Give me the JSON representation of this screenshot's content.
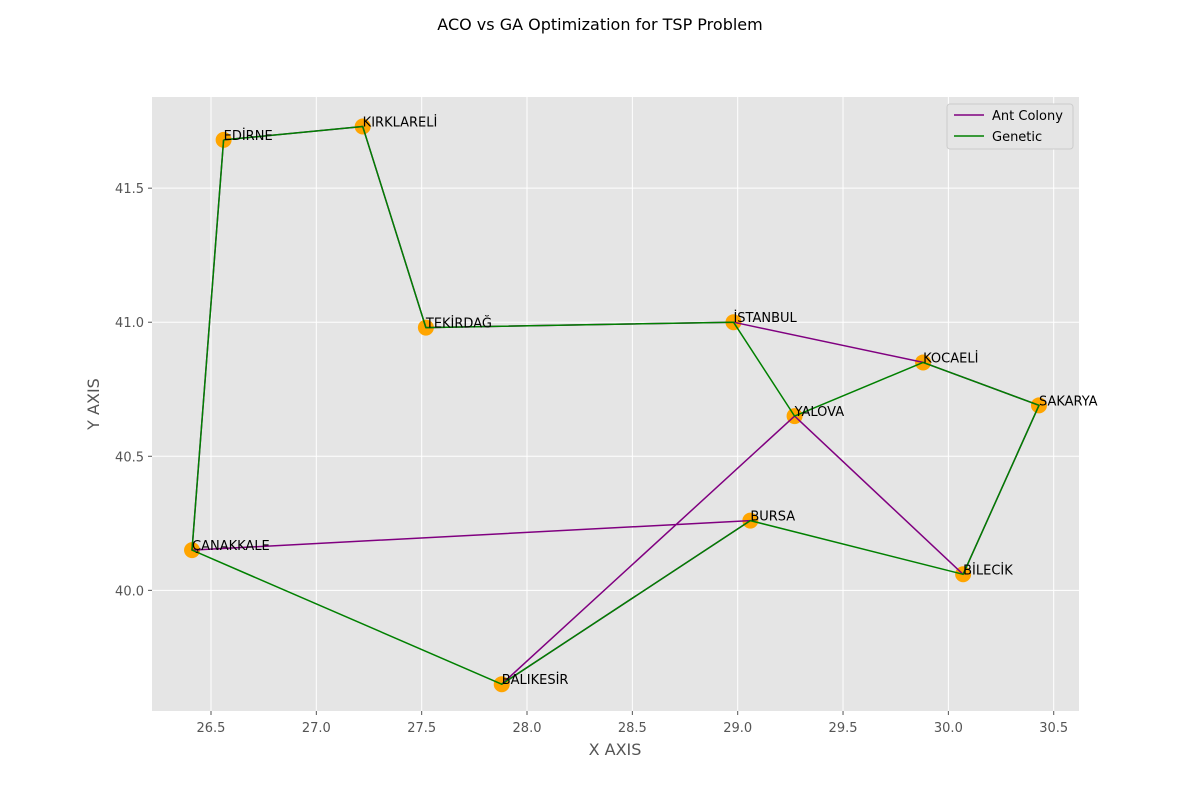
{
  "chart_data": {
    "type": "line",
    "title": "ACO vs GA Optimization for TSP Problem",
    "xlabel": "X AXIS",
    "ylabel": "Y AXIS",
    "xlim": [
      26.22,
      30.62
    ],
    "ylim": [
      39.55,
      41.84
    ],
    "xticks": [
      "26.5",
      "27.0",
      "27.5",
      "28.0",
      "28.5",
      "29.0",
      "29.5",
      "30.0",
      "30.5"
    ],
    "yticks": [
      "40.0",
      "40.5",
      "41.0",
      "41.5"
    ],
    "grid": true,
    "legend": "top-right",
    "cities": [
      {
        "name": "EDİRNE",
        "x": 26.56,
        "y": 41.68
      },
      {
        "name": "KIRKLARELİ",
        "x": 27.22,
        "y": 41.73
      },
      {
        "name": "TEKİRDAĞ",
        "x": 27.52,
        "y": 40.98
      },
      {
        "name": "İSTANBUL",
        "x": 28.98,
        "y": 41.0
      },
      {
        "name": "KOCAELİ",
        "x": 29.88,
        "y": 40.85
      },
      {
        "name": "SAKARYA",
        "x": 30.43,
        "y": 40.69
      },
      {
        "name": "YALOVA",
        "x": 29.27,
        "y": 40.65
      },
      {
        "name": "BURSA",
        "x": 29.06,
        "y": 40.26
      },
      {
        "name": "BİLECİK",
        "x": 30.07,
        "y": 40.06
      },
      {
        "name": "ÇANAKKALE",
        "x": 26.41,
        "y": 40.15
      },
      {
        "name": "BALIKESİR",
        "x": 27.88,
        "y": 39.65
      }
    ],
    "series": [
      {
        "name": "Ant Colony",
        "color": "#800080",
        "route": [
          "EDİRNE",
          "KIRKLARELİ",
          "TEKİRDAĞ",
          "İSTANBUL",
          "KOCAELİ",
          "SAKARYA",
          "BİLECİK",
          "YALOVA",
          "BALIKESİR",
          "BURSA",
          "ÇANAKKALE",
          "EDİRNE"
        ]
      },
      {
        "name": "Genetic",
        "color": "#008000",
        "route": [
          "EDİRNE",
          "KIRKLARELİ",
          "TEKİRDAĞ",
          "İSTANBUL",
          "YALOVA",
          "KOCAELİ",
          "SAKARYA",
          "BİLECİK",
          "BURSA",
          "BALIKESİR",
          "ÇANAKKALE",
          "EDİRNE"
        ]
      }
    ],
    "marker_color": "#FFA500",
    "plot_background": "#E5E5E5"
  }
}
